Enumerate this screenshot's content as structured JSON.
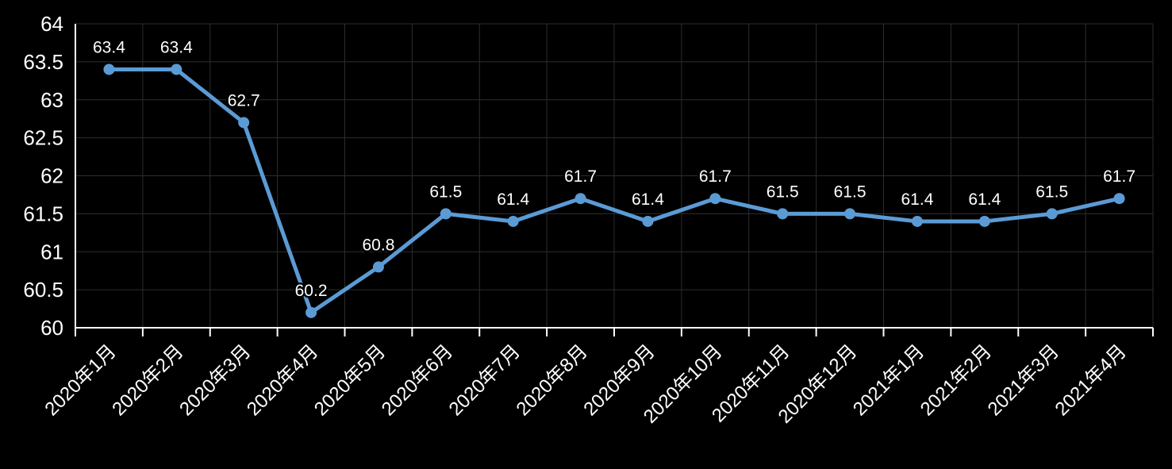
{
  "chart_data": {
    "type": "line",
    "categories": [
      "2020年1月",
      "2020年2月",
      "2020年3月",
      "2020年4月",
      "2020年5月",
      "2020年6月",
      "2020年7月",
      "2020年8月",
      "2020年9月",
      "2020年10月",
      "2020年11月",
      "2020年12月",
      "2021年1月",
      "2021年2月",
      "2021年3月",
      "2021年4月"
    ],
    "series": [
      {
        "name": "",
        "values": [
          63.4,
          63.4,
          62.7,
          60.2,
          60.8,
          61.5,
          61.4,
          61.7,
          61.4,
          61.7,
          61.5,
          61.5,
          61.4,
          61.4,
          61.5,
          61.7
        ],
        "data_labels": [
          "63.4",
          "63.4",
          "62.7",
          "60.2",
          "60.8",
          "61.5",
          "61.4",
          "61.7",
          "61.4",
          "61.7",
          "61.5",
          "61.5",
          "61.4",
          "61.4",
          "61.5",
          "61.7"
        ]
      }
    ],
    "title": "",
    "xlabel": "",
    "ylabel": "",
    "ylim": [
      60,
      64
    ],
    "ytick_step": 0.5,
    "ytick_labels": [
      "64",
      "63.5",
      "63",
      "62.5",
      "62",
      "61.5",
      "61",
      "60.5",
      "60"
    ],
    "grid": true,
    "legend_position": "none",
    "x_label_rotation_deg": -45,
    "colors": {
      "background": "#000000",
      "line": "#5B9BD5",
      "marker": "#5B9BD5",
      "gridline": "#2D2D2D",
      "axis": "#FFFFFF",
      "text": "#FFFFFF"
    }
  }
}
